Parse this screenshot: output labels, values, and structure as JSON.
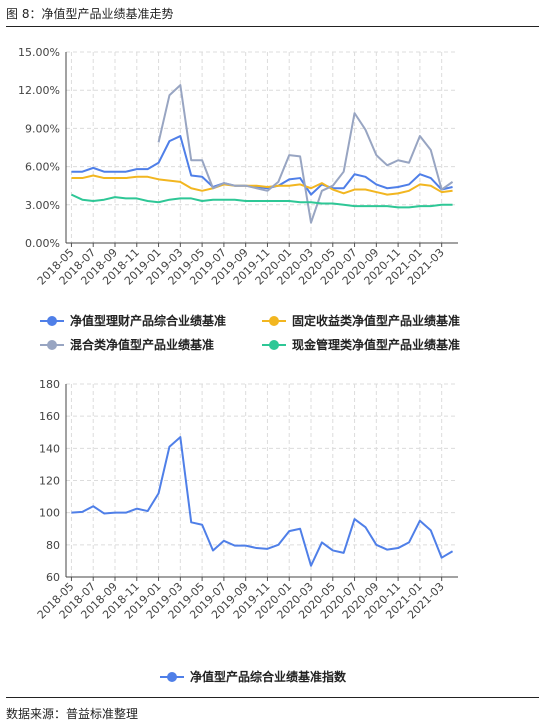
{
  "figure": {
    "title": "图 8：净值型产品业绩基准走势",
    "source": "数据来源：普益标准整理"
  },
  "chart_data": [
    {
      "type": "line",
      "x": [
        "2018-05",
        "2018-06",
        "2018-07",
        "2018-08",
        "2018-09",
        "2018-10",
        "2018-11",
        "2018-12",
        "2019-01",
        "2019-02",
        "2019-03",
        "2019-04",
        "2019-05",
        "2019-06",
        "2019-07",
        "2019-08",
        "2019-09",
        "2019-10",
        "2019-11",
        "2019-12",
        "2020-01",
        "2020-02",
        "2020-03",
        "2020-04",
        "2020-05",
        "2020-06",
        "2020-07",
        "2020-08",
        "2020-09",
        "2020-10",
        "2020-11",
        "2020-12",
        "2021-01",
        "2021-02",
        "2021-03",
        "2021-04"
      ],
      "x_tick_labels": [
        "2018-05",
        "2018-07",
        "2018-09",
        "2018-11",
        "2019-01",
        "2019-03",
        "2019-05",
        "2019-07",
        "2019-09",
        "2019-11",
        "2020-01",
        "2020-03",
        "2020-05",
        "2020-07",
        "2020-09",
        "2020-11",
        "2021-01",
        "2021-03"
      ],
      "y_tick_labels": [
        "0.00%",
        "3.00%",
        "6.00%",
        "9.00%",
        "12.00%",
        "15.00%"
      ],
      "ylim": [
        0,
        15
      ],
      "grid": true,
      "legend_position": "bottom",
      "series": [
        {
          "name": "净值型理财产品综合业绩基准",
          "color": "#4f7fe8",
          "values": [
            5.6,
            5.6,
            5.9,
            5.6,
            5.6,
            5.6,
            5.8,
            5.8,
            6.3,
            8.0,
            8.4,
            5.3,
            5.2,
            4.4,
            4.7,
            4.5,
            4.5,
            4.4,
            4.3,
            4.5,
            5.0,
            5.1,
            3.8,
            4.6,
            4.3,
            4.3,
            5.4,
            5.2,
            4.6,
            4.3,
            4.4,
            4.6,
            5.4,
            5.1,
            4.2,
            4.4
          ]
        },
        {
          "name": "固定收益类净值型产品业绩基准",
          "color": "#f2b620",
          "values": [
            5.1,
            5.1,
            5.3,
            5.1,
            5.1,
            5.1,
            5.2,
            5.2,
            5.0,
            4.9,
            4.8,
            4.3,
            4.1,
            4.3,
            4.6,
            4.5,
            4.5,
            4.5,
            4.4,
            4.5,
            4.5,
            4.6,
            4.3,
            4.7,
            4.2,
            3.9,
            4.2,
            4.2,
            4.0,
            3.8,
            3.9,
            4.1,
            4.6,
            4.5,
            4.0,
            4.1
          ]
        },
        {
          "name": "混合类净值型产品业绩基准",
          "color": "#98a5c2",
          "values": [
            null,
            null,
            null,
            null,
            null,
            null,
            null,
            null,
            7.9,
            11.6,
            12.4,
            6.5,
            6.5,
            4.3,
            4.7,
            4.5,
            4.5,
            4.3,
            4.1,
            4.8,
            6.9,
            6.8,
            1.6,
            4.1,
            4.5,
            5.6,
            10.2,
            8.9,
            6.9,
            6.1,
            6.5,
            6.3,
            8.4,
            7.3,
            4.2,
            4.8
          ]
        },
        {
          "name": "现金管理类净值型产品业绩基准",
          "color": "#2ec796",
          "values": [
            3.8,
            3.4,
            3.3,
            3.4,
            3.6,
            3.5,
            3.5,
            3.3,
            3.2,
            3.4,
            3.5,
            3.5,
            3.3,
            3.4,
            3.4,
            3.4,
            3.3,
            3.3,
            3.3,
            3.3,
            3.3,
            3.2,
            3.2,
            3.1,
            3.1,
            3.0,
            2.9,
            2.9,
            2.9,
            2.9,
            2.8,
            2.8,
            2.9,
            2.9,
            3.0,
            3.0
          ]
        }
      ]
    },
    {
      "type": "line",
      "x": [
        "2018-05",
        "2018-06",
        "2018-07",
        "2018-08",
        "2018-09",
        "2018-10",
        "2018-11",
        "2018-12",
        "2019-01",
        "2019-02",
        "2019-03",
        "2019-04",
        "2019-05",
        "2019-06",
        "2019-07",
        "2019-08",
        "2019-09",
        "2019-10",
        "2019-11",
        "2019-12",
        "2020-01",
        "2020-02",
        "2020-03",
        "2020-04",
        "2020-05",
        "2020-06",
        "2020-07",
        "2020-08",
        "2020-09",
        "2020-10",
        "2020-11",
        "2020-12",
        "2021-01",
        "2021-02",
        "2021-03",
        "2021-04"
      ],
      "x_tick_labels": [
        "2018-05",
        "2018-07",
        "2018-09",
        "2018-11",
        "2019-01",
        "2019-03",
        "2019-05",
        "2019-07",
        "2019-09",
        "2019-11",
        "2020-01",
        "2020-03",
        "2020-05",
        "2020-07",
        "2020-09",
        "2020-11",
        "2021-01",
        "2021-03"
      ],
      "y_tick_labels": [
        "60",
        "80",
        "100",
        "120",
        "140",
        "160",
        "180"
      ],
      "ylim": [
        60,
        180
      ],
      "grid": true,
      "legend_position": "bottom",
      "series": [
        {
          "name": "净值型产品综合业绩基准指数",
          "color": "#4f7fe8",
          "values": [
            100,
            100.5,
            104,
            99.5,
            100,
            100,
            102.5,
            101,
            112,
            141,
            147,
            94,
            92.5,
            76.5,
            82.5,
            79.5,
            79.5,
            78,
            77.5,
            80,
            88.5,
            90,
            67,
            81.5,
            76.5,
            75,
            96,
            91,
            80,
            77,
            78,
            81.5,
            95,
            89,
            72,
            76
          ]
        }
      ]
    }
  ]
}
